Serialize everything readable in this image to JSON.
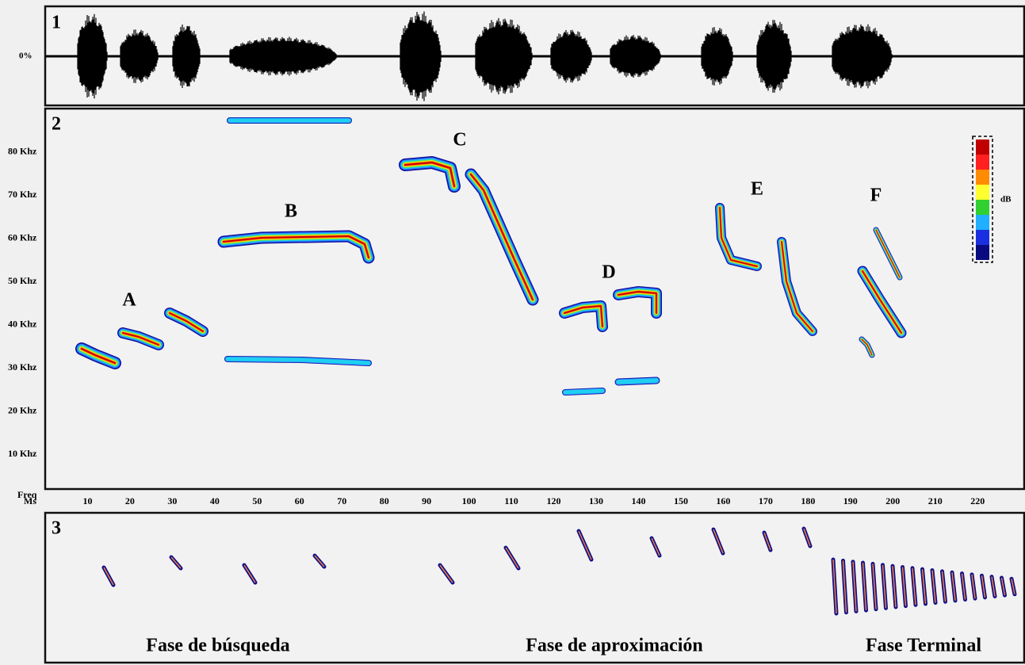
{
  "waveform": {
    "panel": "1",
    "yticks": [
      {
        "value": 0,
        "label": "0%"
      }
    ]
  },
  "spectrogram": {
    "panel": "2",
    "ylabel": "Freq",
    "xlabel": "Ms",
    "ylim": [
      2,
      90
    ],
    "yticks": [
      {
        "value": 10,
        "label": "10 Khz"
      },
      {
        "value": 20,
        "label": "20 Khz"
      },
      {
        "value": 30,
        "label": "30 Khz"
      },
      {
        "value": 40,
        "label": "40 Khz"
      },
      {
        "value": 50,
        "label": "50 Khz"
      },
      {
        "value": 60,
        "label": "60 Khz"
      },
      {
        "value": 70,
        "label": "70 Khz"
      },
      {
        "value": 80,
        "label": "80 Khz"
      }
    ],
    "xlim": [
      0,
      231
    ],
    "xticks": [
      10,
      20,
      30,
      40,
      50,
      60,
      70,
      80,
      90,
      100,
      110,
      120,
      130,
      140,
      150,
      160,
      170,
      180,
      190,
      200,
      210,
      220
    ],
    "calls": [
      "A",
      "B",
      "C",
      "D",
      "E",
      "F"
    ],
    "colorbar_label": "dB"
  },
  "sequence": {
    "panel": "3",
    "phases": [
      "Fase de búsqueda",
      "Fase de aproximación",
      "Fase Terminal"
    ]
  }
}
